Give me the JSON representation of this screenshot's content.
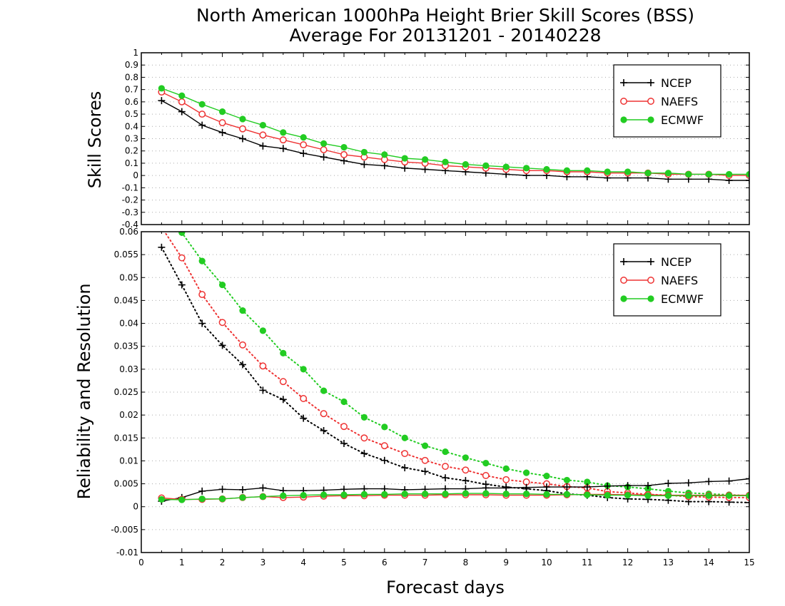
{
  "title_line1": "North American 1000hPa Height Brier Skill Scores (BSS)",
  "title_line2": "Average For 20131201 - 20140228",
  "xlabel": "Forecast days",
  "colors": {
    "NCEP": "#000000",
    "NAEFS": "#ee3333",
    "ECMWF": "#22cc22"
  },
  "chart_data": [
    {
      "type": "line",
      "panel": "top",
      "ylabel": "Skill Scores",
      "xlim": [
        0,
        15
      ],
      "ylim": [
        -0.4,
        1
      ],
      "x_ticks": [
        "0",
        "1",
        "2",
        "3",
        "4",
        "5",
        "6",
        "7",
        "8",
        "9",
        "10",
        "11",
        "12",
        "13",
        "14",
        "15"
      ],
      "y_ticks": [
        "-0.4",
        "-0.3",
        "-0.2",
        "-0.1",
        "0",
        "0.1",
        "0.2",
        "0.3",
        "0.4",
        "0.5",
        "0.6",
        "0.7",
        "0.8",
        "0.9",
        "1"
      ],
      "grid": "horizontal dotted",
      "legend_position": "top-right",
      "x": [
        0.5,
        1,
        1.5,
        2,
        2.5,
        3,
        3.5,
        4,
        4.5,
        5,
        5.5,
        6,
        6.5,
        7,
        7.5,
        8,
        8.5,
        9,
        9.5,
        10,
        10.5,
        11,
        11.5,
        12,
        12.5,
        13,
        13.5,
        14,
        14.5,
        15
      ],
      "series": [
        {
          "name": "NCEP",
          "marker": "plus",
          "line": "solid",
          "values": [
            0.61,
            0.52,
            0.41,
            0.35,
            0.3,
            0.24,
            0.22,
            0.18,
            0.15,
            0.12,
            0.09,
            0.08,
            0.06,
            0.05,
            0.04,
            0.03,
            0.02,
            0.01,
            0.0,
            0.0,
            -0.01,
            -0.01,
            -0.02,
            -0.02,
            -0.02,
            -0.03,
            -0.03,
            -0.03,
            -0.04,
            -0.04
          ]
        },
        {
          "name": "NAEFS",
          "marker": "open-circle",
          "line": "solid",
          "values": [
            0.68,
            0.6,
            0.5,
            0.43,
            0.38,
            0.33,
            0.29,
            0.25,
            0.21,
            0.17,
            0.15,
            0.13,
            0.11,
            0.1,
            0.08,
            0.07,
            0.06,
            0.05,
            0.04,
            0.04,
            0.03,
            0.03,
            0.02,
            0.02,
            0.02,
            0.01,
            0.01,
            0.01,
            0.0,
            0.0
          ]
        },
        {
          "name": "ECMWF",
          "marker": "filled-circle",
          "line": "solid",
          "values": [
            0.71,
            0.65,
            0.58,
            0.52,
            0.46,
            0.41,
            0.35,
            0.31,
            0.26,
            0.23,
            0.19,
            0.17,
            0.14,
            0.13,
            0.11,
            0.09,
            0.08,
            0.07,
            0.06,
            0.05,
            0.04,
            0.04,
            0.03,
            0.03,
            0.02,
            0.02,
            0.01,
            0.01,
            0.01,
            0.01
          ]
        }
      ]
    },
    {
      "type": "line",
      "panel": "bottom",
      "ylabel": "Reliability and Resolution",
      "xlim": [
        0,
        15
      ],
      "ylim": [
        -0.01,
        0.06
      ],
      "x_ticks": [
        "0",
        "1",
        "2",
        "3",
        "4",
        "5",
        "6",
        "7",
        "8",
        "9",
        "10",
        "11",
        "12",
        "13",
        "14",
        "15"
      ],
      "y_ticks": [
        "-0.01",
        "-0.005",
        "0",
        "0.005",
        "0.01",
        "0.015",
        "0.02",
        "0.025",
        "0.03",
        "0.035",
        "0.04",
        "0.045",
        "0.05",
        "0.055",
        "0.06"
      ],
      "grid": "horizontal dotted",
      "legend_position": "top-right",
      "x": [
        0.5,
        1,
        1.5,
        2,
        2.5,
        3,
        3.5,
        4,
        4.5,
        5,
        5.5,
        6,
        6.5,
        7,
        7.5,
        8,
        8.5,
        9,
        9.5,
        10,
        10.5,
        11,
        11.5,
        12,
        12.5,
        13,
        13.5,
        14,
        14.5,
        15
      ],
      "series": [
        {
          "name": "NCEP",
          "marker": "plus",
          "line": "dotted",
          "values": [
            0.0566,
            0.0484,
            0.04,
            0.0352,
            0.031,
            0.0254,
            0.0234,
            0.0193,
            0.0166,
            0.0138,
            0.0116,
            0.0101,
            0.0085,
            0.0077,
            0.0063,
            0.0057,
            0.0049,
            0.0043,
            0.0039,
            0.0035,
            0.0028,
            0.0025,
            0.002,
            0.0017,
            0.0016,
            0.0014,
            0.0011,
            0.0011,
            0.001,
            0.0009
          ]
        },
        {
          "name": "NAEFS",
          "marker": "open-circle",
          "line": "dotted",
          "values": [
            0.061,
            0.0543,
            0.0463,
            0.0402,
            0.0353,
            0.0307,
            0.0273,
            0.0236,
            0.0203,
            0.0175,
            0.015,
            0.0133,
            0.0116,
            0.0101,
            0.0088,
            0.008,
            0.0068,
            0.0059,
            0.0054,
            0.005,
            0.0044,
            0.0041,
            0.0033,
            0.003,
            0.0027,
            0.0025,
            0.0022,
            0.0021,
            0.002,
            0.002
          ]
        },
        {
          "name": "ECMWF",
          "marker": "filled-circle",
          "line": "dotted",
          "values": [
            0.064,
            0.0598,
            0.0536,
            0.0484,
            0.0428,
            0.0384,
            0.0335,
            0.03,
            0.0253,
            0.0229,
            0.0195,
            0.0174,
            0.015,
            0.0133,
            0.012,
            0.0107,
            0.0095,
            0.0083,
            0.0074,
            0.0067,
            0.0058,
            0.0054,
            0.0046,
            0.0043,
            0.0039,
            0.0034,
            0.003,
            0.0028,
            0.0026,
            0.0024
          ]
        },
        {
          "name": "NCEP",
          "marker": "plus",
          "line": "solid",
          "values": [
            0.0012,
            0.002,
            0.0034,
            0.0038,
            0.0037,
            0.0041,
            0.0035,
            0.0035,
            0.0036,
            0.0038,
            0.0039,
            0.0039,
            0.0037,
            0.0038,
            0.0039,
            0.0039,
            0.0041,
            0.0041,
            0.0042,
            0.0043,
            0.0043,
            0.0043,
            0.0045,
            0.0046,
            0.0046,
            0.0051,
            0.0052,
            0.0055,
            0.0056,
            0.0061
          ]
        },
        {
          "name": "NAEFS",
          "marker": "open-circle",
          "line": "solid",
          "values": [
            0.0019,
            0.0016,
            0.0016,
            0.0017,
            0.002,
            0.0022,
            0.002,
            0.0021,
            0.0023,
            0.0024,
            0.0024,
            0.0025,
            0.0025,
            0.0025,
            0.0026,
            0.0026,
            0.0026,
            0.0025,
            0.0025,
            0.0025,
            0.0026,
            0.0027,
            0.0027,
            0.0026,
            0.0026,
            0.0025,
            0.0025,
            0.0025,
            0.0025,
            0.0025
          ]
        },
        {
          "name": "ECMWF",
          "marker": "filled-circle",
          "line": "solid",
          "values": [
            0.0016,
            0.0015,
            0.0017,
            0.0017,
            0.002,
            0.0022,
            0.0024,
            0.0025,
            0.0026,
            0.0026,
            0.0027,
            0.0027,
            0.0028,
            0.0028,
            0.0028,
            0.0029,
            0.0029,
            0.0028,
            0.0028,
            0.0027,
            0.0027,
            0.0026,
            0.0025,
            0.0025,
            0.0024,
            0.0024,
            0.0024,
            0.0024,
            0.0024,
            0.0024
          ]
        }
      ]
    }
  ]
}
